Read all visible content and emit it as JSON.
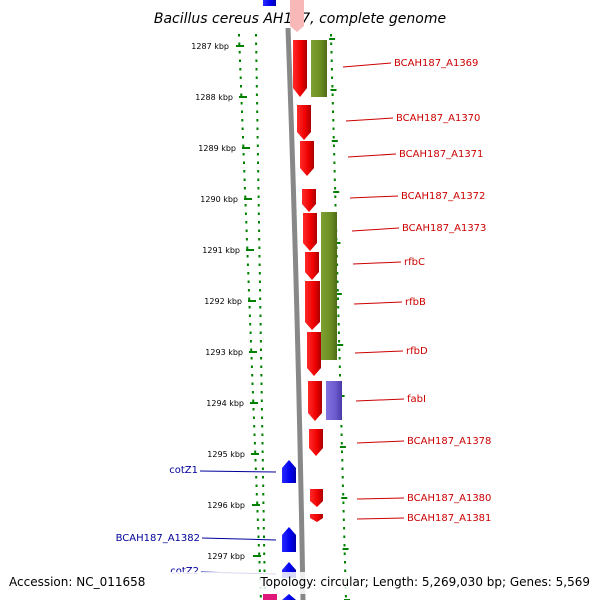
{
  "title": "Bacillus cereus AH187, complete genome",
  "footer": {
    "accession": "Accession: NC_011658",
    "topology": "Topology: circular; Length: 5,269,030 bp; Genes: 5,569"
  },
  "scale": {
    "labels": [
      "1287 kbp",
      "1288 kbp",
      "1289 kbp",
      "1290 kbp",
      "1291 kbp",
      "1292 kbp",
      "1293 kbp",
      "1294 kbp",
      "1295 kbp",
      "1296 kbp",
      "1297 kbp"
    ]
  },
  "genes_right": [
    {
      "label": "BCAH187_A1369"
    },
    {
      "label": "BCAH187_A1370"
    },
    {
      "label": "BCAH187_A1371"
    },
    {
      "label": "BCAH187_A1372"
    },
    {
      "label": "BCAH187_A1373"
    },
    {
      "label": "rfbC"
    },
    {
      "label": "rfbB"
    },
    {
      "label": "rfbD"
    },
    {
      "label": "fabI"
    },
    {
      "label": "BCAH187_A1378"
    },
    {
      "label": "BCAH187_A1380"
    },
    {
      "label": "BCAH187_A1381"
    }
  ],
  "genes_left": [
    {
      "label": "cotZ1"
    },
    {
      "label": "BCAH187_A1382"
    },
    {
      "label": "cotZ2"
    }
  ],
  "colors": {
    "forward_gene": "#ff0000",
    "reverse_gene": "#0000ff",
    "cog_olive": "#6b8e23",
    "cog_purple": "#6a5acd",
    "label_right": "#cc0000",
    "label_left": "#000099",
    "tick_green": "#008000",
    "backbone": "#888888"
  }
}
